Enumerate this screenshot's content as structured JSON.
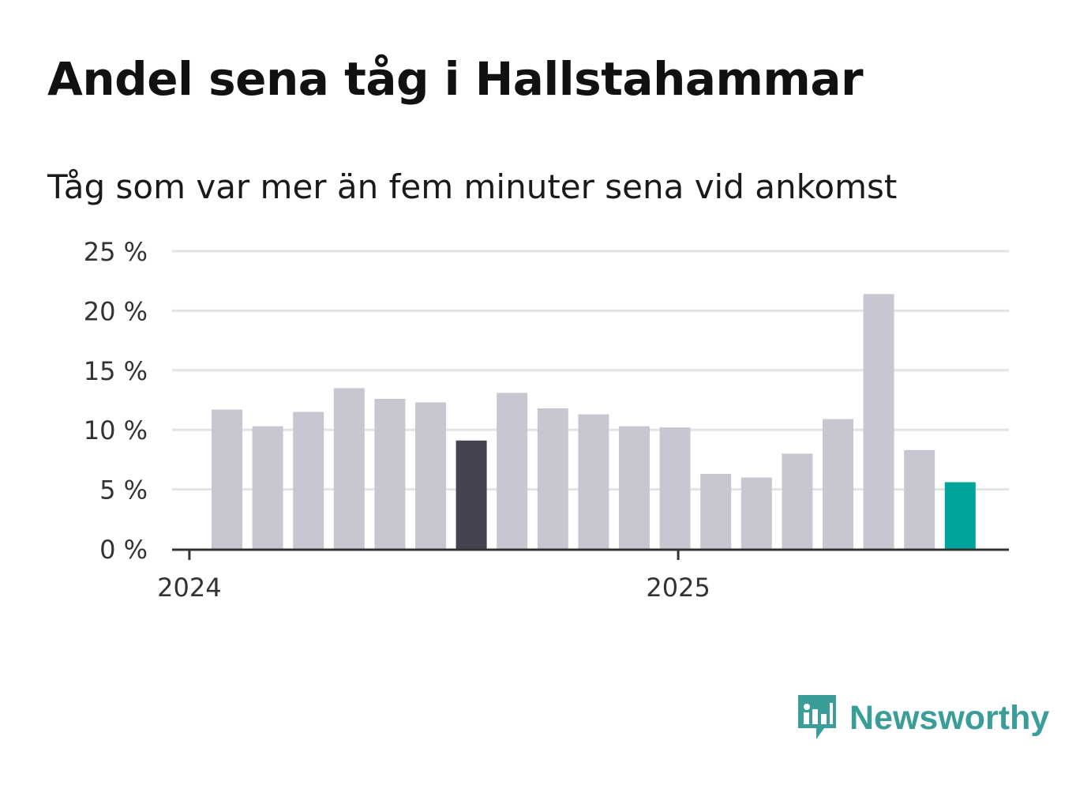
{
  "title": "Andel sena tåg i Hallstahammar",
  "subtitle": "Tåg som var mer än fem minuter sena vid ankomst",
  "brand": {
    "name": "Newsworthy",
    "color": "#3a9d97",
    "icon": "newsworthy-logo-icon"
  },
  "colors": {
    "bar": "#c8c7d1",
    "highlight": "#44434f",
    "latest": "#00a49a",
    "grid": "#e3e3e3",
    "axis": "#333333"
  },
  "chart_data": {
    "type": "bar",
    "title": "Andel sena tåg i Hallstahammar",
    "subtitle": "Tåg som var mer än fem minuter sena vid ankomst",
    "xlabel": "",
    "ylabel": "",
    "x_tick_labels": [
      "2024",
      "2025"
    ],
    "y_tick_labels": [
      "0 %",
      "5 %",
      "10 %",
      "15 %",
      "20 %",
      "25 %"
    ],
    "ylim": [
      0,
      25
    ],
    "grid": "horizontal",
    "values": [
      11.7,
      10.3,
      11.5,
      13.5,
      12.6,
      12.3,
      9.1,
      13.1,
      11.8,
      11.3,
      10.3,
      10.2,
      6.3,
      6.0,
      8.0,
      10.9,
      21.4,
      8.3,
      5.6
    ],
    "highlighted_index": 6,
    "latest_index": 18
  }
}
